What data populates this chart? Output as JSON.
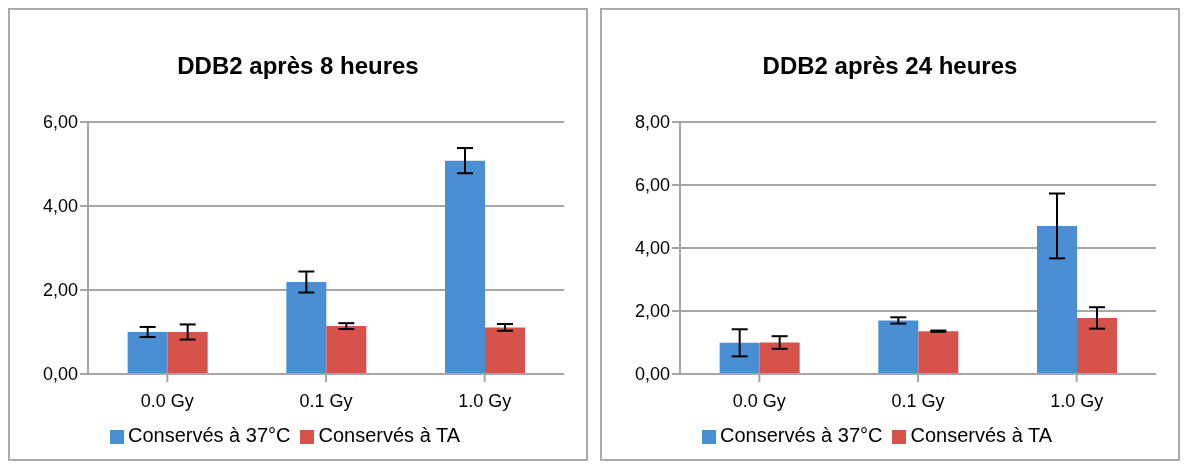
{
  "chart_data": [
    {
      "type": "bar",
      "title": "DDB2 après 8 heures",
      "categories": [
        "0.0 Gy",
        "0.1 Gy",
        "1.0 Gy"
      ],
      "series": [
        {
          "name": "Conservés à 37°C",
          "color": "#4a8fd4",
          "values": [
            1.0,
            2.19,
            5.08
          ],
          "errors": [
            0.12,
            0.25,
            0.3
          ]
        },
        {
          "name": "Conservés à TA",
          "color": "#d6524a",
          "values": [
            1.0,
            1.14,
            1.11
          ],
          "errors": [
            0.18,
            0.07,
            0.08
          ]
        }
      ],
      "ylim": [
        0,
        6
      ],
      "yticks": [
        {
          "value": 0,
          "label": "0,00"
        },
        {
          "value": 2,
          "label": "2,00"
        },
        {
          "value": 4,
          "label": "4,00"
        },
        {
          "value": 6,
          "label": "6,00"
        }
      ],
      "grid": "y",
      "legend": "bottom"
    },
    {
      "type": "bar",
      "title": "DDB2 après 24 heures",
      "categories": [
        "0.0 Gy",
        "0.1 Gy",
        "1.0 Gy"
      ],
      "series": [
        {
          "name": "Conservés à 37°C",
          "color": "#4a8fd4",
          "values": [
            0.99,
            1.7,
            4.7
          ],
          "errors": [
            0.43,
            0.1,
            1.03
          ]
        },
        {
          "name": "Conservés à TA",
          "color": "#d6524a",
          "values": [
            1.0,
            1.36,
            1.78
          ],
          "errors": [
            0.2,
            0.02,
            0.34
          ]
        }
      ],
      "ylim": [
        0,
        8
      ],
      "yticks": [
        {
          "value": 0,
          "label": "0,00"
        },
        {
          "value": 2,
          "label": "2,00"
        },
        {
          "value": 4,
          "label": "4,00"
        },
        {
          "value": 6,
          "label": "6,00"
        },
        {
          "value": 8,
          "label": "8,00"
        }
      ],
      "grid": "y",
      "legend": "bottom"
    }
  ]
}
